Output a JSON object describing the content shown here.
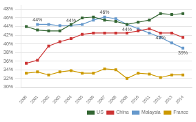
{
  "chart_data": {
    "type": "line",
    "x": [
      2000,
      2001,
      2002,
      2003,
      2004,
      2005,
      2006,
      2007,
      2008,
      2009,
      2010,
      2011,
      2012,
      2013,
      2014
    ],
    "series": [
      {
        "name": "US",
        "color": "#336633",
        "marker": "square",
        "values": [
          44.0,
          43.2,
          43.0,
          43.0,
          44.5,
          46.0,
          46.2,
          45.5,
          45.2,
          44.5,
          45.0,
          45.5,
          47.0,
          46.8,
          47.0
        ]
      },
      {
        "name": "China",
        "color": "#CC3333",
        "marker": "square",
        "values": [
          35.5,
          36.2,
          39.5,
          40.5,
          41.2,
          42.2,
          42.5,
          42.5,
          42.5,
          42.5,
          43.0,
          43.5,
          42.5,
          42.5,
          41.5
        ]
      },
      {
        "name": "Malaysia",
        "color": "#6699CC",
        "marker": "square",
        "values": [
          null,
          44.5,
          44.5,
          44.2,
          44.3,
          44.5,
          45.5,
          46.2,
          45.8,
          44.5,
          43.5,
          42.5,
          41.5,
          40.2,
          39.0
        ]
      },
      {
        "name": "France",
        "color": "#CC9900",
        "marker": "square",
        "values": [
          33.2,
          33.5,
          32.8,
          33.5,
          33.8,
          33.2,
          33.2,
          34.2,
          34.0,
          32.0,
          33.2,
          33.0,
          32.2,
          32.8,
          32.8
        ]
      }
    ],
    "xlim": [
      1999.5,
      2014.8
    ],
    "xticks": [
      2000,
      2001,
      2002,
      2003,
      2004,
      2005,
      2006,
      2007,
      2008,
      2009,
      2010,
      2011,
      2012,
      2013,
      2014
    ],
    "ylim": [
      30,
      49
    ],
    "yticks": [
      {
        "value": 30,
        "label": "30%"
      },
      {
        "value": 32,
        "label": "32%"
      },
      {
        "value": 34,
        "label": "34%"
      },
      {
        "value": 36,
        "label": "36%"
      },
      {
        "value": 38,
        "label": "38%"
      },
      {
        "value": 40,
        "label": "40%"
      },
      {
        "value": 42,
        "label": "42%"
      },
      {
        "value": 44,
        "label": "44%"
      },
      {
        "value": 46,
        "label": "46%"
      },
      {
        "value": 48,
        "label": "48%"
      }
    ],
    "grid": "y",
    "legend": "lower right",
    "annotations": [
      {
        "text": "44%",
        "x": 2001,
        "y": 44.5
      },
      {
        "text": "44%",
        "x": 2004,
        "y": 44.3
      },
      {
        "text": "46%",
        "x": 2007,
        "y": 46.2
      },
      {
        "text": "44%",
        "x": 2009,
        "y": 44.5
      },
      {
        "text": "42%",
        "x": 2012,
        "y": 42.5
      },
      {
        "text": "39%",
        "x": 2014,
        "y": 39.0
      }
    ]
  }
}
